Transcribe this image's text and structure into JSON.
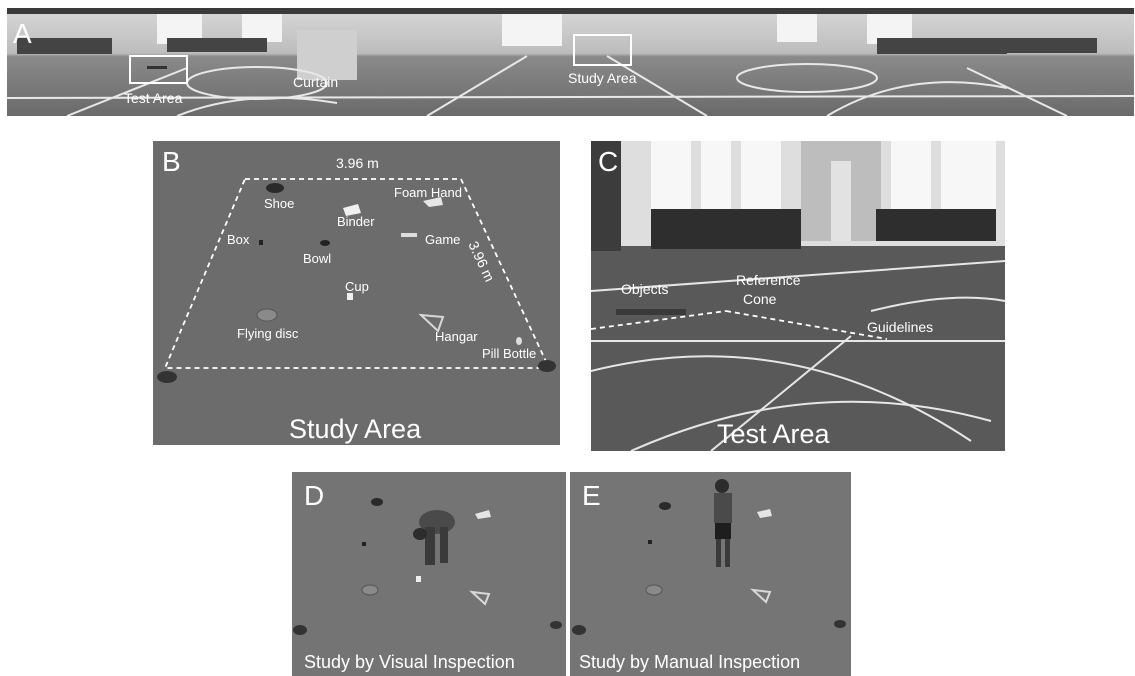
{
  "panel_a": {
    "letter": "A",
    "labels": {
      "test_area": "Test Area",
      "curtain": "Curtain",
      "study_area": "Study Area"
    }
  },
  "panel_b": {
    "letter": "B",
    "caption": "Study Area",
    "dimensions": {
      "top": "3.96 m",
      "right": "3.96 m"
    },
    "objects": {
      "shoe": "Shoe",
      "foam_hand": "Foam Hand",
      "binder": "Binder",
      "box": "Box",
      "game": "Game",
      "bowl": "Bowl",
      "cup": "Cup",
      "flying_disc": "Flying disc",
      "hangar": "Hangar",
      "pill_bottle": "Pill Bottle"
    }
  },
  "panel_c": {
    "letter": "C",
    "caption": "Test Area",
    "labels": {
      "objects": "Objects",
      "reference_line1": "Reference",
      "reference_line2": "Cone",
      "guidelines": "Guidelines"
    }
  },
  "panel_d": {
    "letter": "D",
    "caption": "Study by Visual Inspection"
  },
  "panel_e": {
    "letter": "E",
    "caption": "Study by Manual Inspection"
  }
}
